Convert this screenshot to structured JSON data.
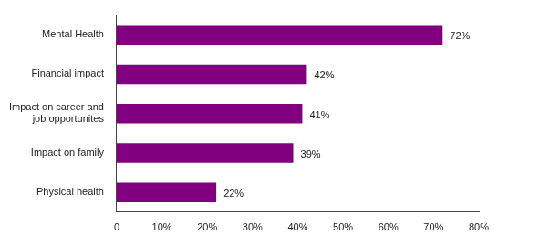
{
  "chart_data": {
    "type": "bar",
    "orientation": "horizontal",
    "categories": [
      "Mental Health",
      "Financial impact",
      "Impact on career and job opportunites",
      "Impact on family",
      "Physical health"
    ],
    "values": [
      72,
      42,
      41,
      39,
      22
    ],
    "value_labels": [
      "72%",
      "42%",
      "41%",
      "39%",
      "22%"
    ],
    "data_labels": true,
    "color": "#800080",
    "xlim": [
      0,
      80
    ],
    "xticks": [
      0,
      {
        "value": 10,
        "label": "10%"
      },
      {
        "value": 20,
        "label": "20%"
      },
      {
        "value": 30,
        "label": "30%"
      },
      {
        "value": 40,
        "label": "40%"
      },
      {
        "value": 50,
        "label": "50%"
      },
      {
        "value": 60,
        "label": "60%"
      },
      {
        "value": 70,
        "label": "70%"
      },
      {
        "value": 80,
        "label": "80%"
      }
    ],
    "grid": false
  }
}
